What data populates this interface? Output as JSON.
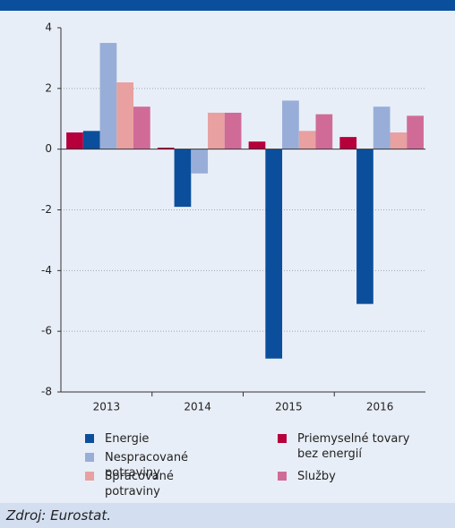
{
  "chart_data": {
    "type": "bar",
    "categories": [
      "2013",
      "2014",
      "2015",
      "2016"
    ],
    "series": [
      {
        "name": "Priemyselné tovary bez energií",
        "color": "#b5003b",
        "values": [
          0.55,
          0.05,
          0.25,
          0.4
        ]
      },
      {
        "name": "Energie",
        "color": "#0b4f9c",
        "values": [
          0.6,
          -1.9,
          -6.9,
          -5.1
        ]
      },
      {
        "name": "Nespracované potraviny",
        "color": "#98aed8",
        "values": [
          3.5,
          -0.8,
          1.6,
          1.4
        ]
      },
      {
        "name": "Spracované potraviny",
        "color": "#e8a0a0",
        "values": [
          2.2,
          1.2,
          0.6,
          0.55
        ]
      },
      {
        "name": "Služby",
        "color": "#d06b97",
        "values": [
          1.4,
          1.2,
          1.15,
          1.1
        ]
      }
    ],
    "ylim": [
      -8,
      4
    ],
    "yticks": [
      -8,
      -6,
      -4,
      -2,
      0,
      2,
      4
    ],
    "grid": true,
    "source": "Zdroj: Eurostat."
  }
}
